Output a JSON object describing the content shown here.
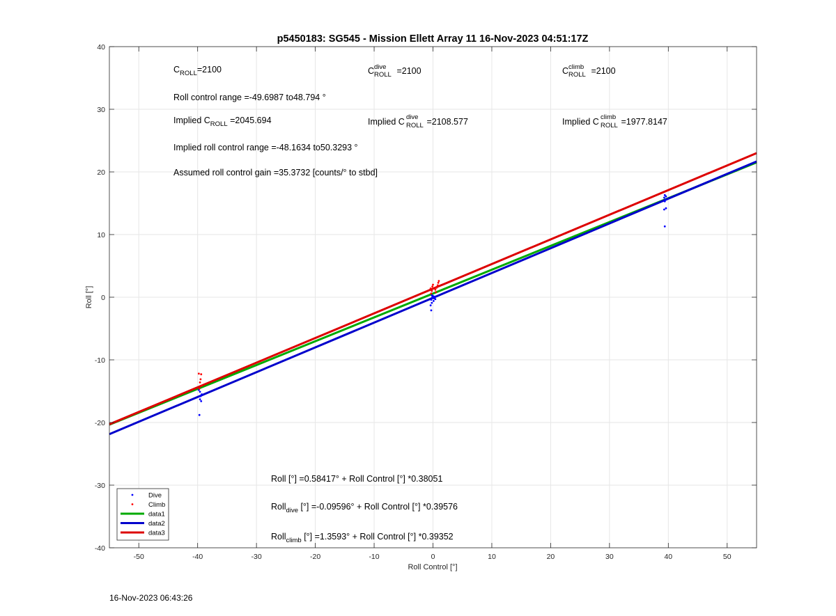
{
  "chart_data": {
    "type": "scatter",
    "title": "p5450183: SG545 - Mission Ellett Array 11 16-Nov-2023 04:51:17Z",
    "xlabel": "Roll Control [°]",
    "ylabel": "Roll [°]",
    "xlim": [
      -55,
      55
    ],
    "ylim": [
      -40,
      40
    ],
    "xticks": [
      -50,
      -40,
      -30,
      -20,
      -10,
      0,
      10,
      20,
      30,
      40,
      50
    ],
    "yticks": [
      -40,
      -30,
      -20,
      -10,
      0,
      10,
      20,
      30,
      40
    ],
    "grid": true,
    "legend_position": "bottom-left",
    "series": [
      {
        "name": "Dive",
        "kind": "points",
        "color": "#0000ff",
        "points": [
          [
            -39.7,
            -18.8
          ],
          [
            -39.4,
            -16.6
          ],
          [
            -39.6,
            -16.3
          ],
          [
            -39.5,
            -15.8
          ],
          [
            -39.3,
            -15.5
          ],
          [
            -39.6,
            -15.1
          ],
          [
            -39.8,
            -14.8
          ],
          [
            -0.3,
            -2.1
          ],
          [
            -0.4,
            -1.3
          ],
          [
            -0.2,
            -0.9
          ],
          [
            0.1,
            -0.6
          ],
          [
            -0.3,
            -0.4
          ],
          [
            0.2,
            -0.2
          ],
          [
            -0.1,
            0.0
          ],
          [
            0.3,
            0.1
          ],
          [
            -0.2,
            0.3
          ],
          [
            0.4,
            -0.3
          ],
          [
            0.0,
            0.2
          ],
          [
            39.4,
            11.3
          ],
          [
            39.3,
            14.0
          ],
          [
            39.6,
            14.2
          ],
          [
            39.4,
            15.3
          ],
          [
            39.5,
            15.6
          ],
          [
            39.3,
            15.9
          ],
          [
            39.6,
            16.1
          ],
          [
            39.4,
            16.3
          ]
        ]
      },
      {
        "name": "Climb",
        "kind": "points",
        "color": "#ff0000",
        "points": [
          [
            -39.4,
            -12.3
          ],
          [
            -39.8,
            -12.2
          ],
          [
            -39.5,
            -13.1
          ],
          [
            -39.6,
            -13.6
          ],
          [
            -39.3,
            -14.1
          ],
          [
            -39.7,
            -14.6
          ],
          [
            -0.3,
            0.6
          ],
          [
            -0.2,
            1.0
          ],
          [
            -0.4,
            1.4
          ],
          [
            -0.1,
            1.7
          ],
          [
            0.0,
            2.0
          ],
          [
            0.4,
            1.2
          ],
          [
            0.6,
            1.5
          ],
          [
            0.9,
            2.3
          ],
          [
            1.0,
            2.6
          ],
          [
            0.8,
            1.9
          ],
          [
            0.5,
            0.8
          ]
        ]
      },
      {
        "name": "data1",
        "kind": "line",
        "color": "#00aa00",
        "intercept": 0.58417,
        "slope": 0.38051
      },
      {
        "name": "data2",
        "kind": "line",
        "color": "#0000cc",
        "intercept": -0.09596,
        "slope": 0.39576
      },
      {
        "name": "data3",
        "kind": "line",
        "color": "#dd0000",
        "intercept": 1.3593,
        "slope": 0.39352
      }
    ]
  },
  "annotations": {
    "c_roll": {
      "base": "C",
      "sub": "ROLL",
      "value": "=2100"
    },
    "c_roll_dive": {
      "base": "C",
      "sup": "dive",
      "sub": "ROLL",
      "value": " =2100"
    },
    "c_roll_climb": {
      "base": "C",
      "sup": "climb",
      "sub": "ROLL",
      "value": " =2100"
    },
    "roll_control_range": "Roll control range =-49.6987 to48.794 °",
    "implied_c_roll": {
      "prefix": "Implied C",
      "sub": "ROLL",
      "value": " =2045.694"
    },
    "implied_c_roll_dive": {
      "prefix": "Implied C",
      "sup": "dive",
      "sub": "ROLL",
      "value": " =2108.577"
    },
    "implied_c_roll_climb": {
      "prefix": "Implied C",
      "sup": "climb",
      "sub": "ROLL",
      "value": " =1977.8147"
    },
    "implied_range": "Implied roll control range =-48.1634 to50.3293 °",
    "gain": "Assumed roll control gain =35.3732 [counts/° to stbd]",
    "fit_all": "Roll [°] =0.58417° + Roll Control [°] *0.38051",
    "fit_dive": {
      "prefix": "Roll",
      "sub": "dive",
      "rest": " [°] =-0.09596° + Roll Control [°] *0.39576"
    },
    "fit_climb": {
      "prefix": "Roll",
      "sub": "climb",
      "rest": " [°] =1.3593° + Roll Control [°] *0.39352"
    }
  },
  "footer_timestamp": "16-Nov-2023 06:43:26"
}
